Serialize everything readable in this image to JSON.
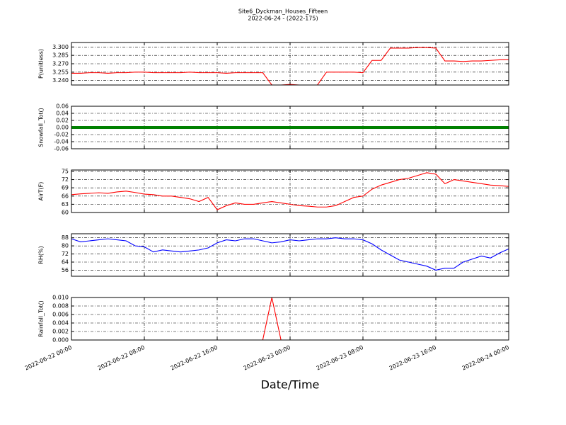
{
  "chart_data": [
    {
      "type": "line",
      "title": "Site6_Dyckman_Houses_Fifteen",
      "subtitle": "2022-06-24 - (2022-175)",
      "ylabel": "P(unitless)",
      "x": [
        "2022-06-22 00:00",
        "2022-06-22 01:00",
        "2022-06-22 02:00",
        "2022-06-22 03:00",
        "2022-06-22 04:00",
        "2022-06-22 05:00",
        "2022-06-22 06:00",
        "2022-06-22 07:00",
        "2022-06-22 08:00",
        "2022-06-22 09:00",
        "2022-06-22 10:00",
        "2022-06-22 11:00",
        "2022-06-22 12:00",
        "2022-06-22 13:00",
        "2022-06-22 14:00",
        "2022-06-22 15:00",
        "2022-06-22 16:00",
        "2022-06-22 17:00",
        "2022-06-22 18:00",
        "2022-06-22 19:00",
        "2022-06-22 20:00",
        "2022-06-22 21:00",
        "2022-06-22 22:00",
        "2022-06-22 23:00",
        "2022-06-23 00:00",
        "2022-06-23 01:00",
        "2022-06-23 02:00",
        "2022-06-23 03:00",
        "2022-06-23 04:00",
        "2022-06-23 05:00",
        "2022-06-23 06:00",
        "2022-06-23 07:00",
        "2022-06-23 08:00",
        "2022-06-23 09:00",
        "2022-06-23 10:00",
        "2022-06-23 11:00",
        "2022-06-23 12:00",
        "2022-06-23 13:00",
        "2022-06-23 14:00",
        "2022-06-23 15:00",
        "2022-06-23 16:00",
        "2022-06-23 17:00",
        "2022-06-23 18:00",
        "2022-06-23 19:00",
        "2022-06-23 20:00",
        "2022-06-23 21:00",
        "2022-06-23 22:00",
        "2022-06-23 23:00",
        "2022-06-24 00:00"
      ],
      "series": [
        {
          "name": "P",
          "color": "#ff0000",
          "values": [
            3.253,
            3.253,
            3.254,
            3.254,
            3.253,
            3.254,
            3.254,
            3.255,
            3.255,
            3.254,
            3.254,
            3.254,
            3.254,
            3.255,
            3.254,
            3.254,
            3.254,
            3.253,
            3.254,
            3.254,
            3.254,
            3.254,
            3.232,
            3.232,
            3.233,
            3.232,
            3.232,
            3.232,
            3.255,
            3.255,
            3.255,
            3.255,
            3.254,
            3.276,
            3.276,
            3.298,
            3.298,
            3.298,
            3.299,
            3.299,
            3.298,
            3.275,
            3.275,
            3.274,
            3.275,
            3.275,
            3.276,
            3.277,
            3.277
          ]
        }
      ],
      "xlim": [
        "2022-06-22 00:00",
        "2022-06-24 00:00"
      ],
      "xticks": [
        "2022-06-22 00:00",
        "2022-06-22 08:00",
        "2022-06-22 16:00",
        "2022-06-23 00:00",
        "2022-06-23 08:00",
        "2022-06-23 16:00",
        "2022-06-24 00:00"
      ],
      "ylim": [
        3.232,
        3.308
      ],
      "yticks": [
        {
          "value": 3.24,
          "label": "3.240"
        },
        {
          "value": 3.255,
          "label": "3.255"
        },
        {
          "value": 3.27,
          "label": "3.270"
        },
        3.285,
        {
          "value": 3.3,
          "label": "3.300"
        }
      ],
      "grid": true
    },
    {
      "type": "line",
      "ylabel": "Snowfall_Tot()",
      "x": [
        "2022-06-22 00:00",
        "2022-06-22 01:00",
        "2022-06-22 02:00",
        "2022-06-22 03:00",
        "2022-06-22 04:00",
        "2022-06-22 05:00",
        "2022-06-22 06:00",
        "2022-06-22 07:00",
        "2022-06-22 08:00",
        "2022-06-22 09:00",
        "2022-06-22 10:00",
        "2022-06-22 11:00",
        "2022-06-22 12:00",
        "2022-06-22 13:00",
        "2022-06-22 14:00",
        "2022-06-22 15:00",
        "2022-06-22 16:00",
        "2022-06-22 17:00",
        "2022-06-22 18:00",
        "2022-06-22 19:00",
        "2022-06-22 20:00",
        "2022-06-22 21:00",
        "2022-06-22 22:00",
        "2022-06-22 23:00",
        "2022-06-23 00:00",
        "2022-06-23 01:00",
        "2022-06-23 02:00",
        "2022-06-23 03:00",
        "2022-06-23 04:00",
        "2022-06-23 05:00",
        "2022-06-23 06:00",
        "2022-06-23 07:00",
        "2022-06-23 08:00",
        "2022-06-23 09:00",
        "2022-06-23 10:00",
        "2022-06-23 11:00",
        "2022-06-23 12:00",
        "2022-06-23 13:00",
        "2022-06-23 14:00",
        "2022-06-23 15:00",
        "2022-06-23 16:00",
        "2022-06-23 17:00",
        "2022-06-23 18:00",
        "2022-06-23 19:00",
        "2022-06-23 20:00",
        "2022-06-23 21:00",
        "2022-06-23 22:00",
        "2022-06-23 23:00",
        "2022-06-24 00:00"
      ],
      "series": [
        {
          "name": "Snowfall_Tot",
          "color": "#008000",
          "values": [
            0,
            0,
            0,
            0,
            0,
            0,
            0,
            0,
            0,
            0,
            0,
            0,
            0,
            0,
            0,
            0,
            0,
            0,
            0,
            0,
            0,
            0,
            0,
            0,
            0,
            0,
            0,
            0,
            0,
            0,
            0,
            0,
            0,
            0,
            0,
            0,
            0,
            0,
            0,
            0,
            0,
            0,
            0,
            0,
            0,
            0,
            0,
            0,
            0
          ]
        }
      ],
      "xlim": [
        "2022-06-22 00:00",
        "2022-06-24 00:00"
      ],
      "xticks": [
        "2022-06-22 00:00",
        "2022-06-22 08:00",
        "2022-06-22 16:00",
        "2022-06-23 00:00",
        "2022-06-23 08:00",
        "2022-06-23 16:00",
        "2022-06-24 00:00"
      ],
      "ylim": [
        -0.06,
        0.06
      ],
      "yticks": [
        -0.06,
        -0.04,
        -0.02,
        {
          "value": 0,
          "label": "0.00"
        },
        0.02,
        0.04,
        0.06
      ],
      "grid": true
    },
    {
      "type": "line",
      "ylabel": "AirT(F)",
      "x": [
        "2022-06-22 00:00",
        "2022-06-22 01:00",
        "2022-06-22 02:00",
        "2022-06-22 03:00",
        "2022-06-22 04:00",
        "2022-06-22 05:00",
        "2022-06-22 06:00",
        "2022-06-22 07:00",
        "2022-06-22 08:00",
        "2022-06-22 09:00",
        "2022-06-22 10:00",
        "2022-06-22 11:00",
        "2022-06-22 12:00",
        "2022-06-22 13:00",
        "2022-06-22 14:00",
        "2022-06-22 15:00",
        "2022-06-22 16:00",
        "2022-06-22 17:00",
        "2022-06-22 18:00",
        "2022-06-22 19:00",
        "2022-06-22 20:00",
        "2022-06-22 21:00",
        "2022-06-22 22:00",
        "2022-06-22 23:00",
        "2022-06-23 00:00",
        "2022-06-23 01:00",
        "2022-06-23 02:00",
        "2022-06-23 03:00",
        "2022-06-23 04:00",
        "2022-06-23 05:00",
        "2022-06-23 06:00",
        "2022-06-23 07:00",
        "2022-06-23 08:00",
        "2022-06-23 09:00",
        "2022-06-23 10:00",
        "2022-06-23 11:00",
        "2022-06-23 12:00",
        "2022-06-23 13:00",
        "2022-06-23 14:00",
        "2022-06-23 15:00",
        "2022-06-23 16:00",
        "2022-06-23 17:00",
        "2022-06-23 18:00",
        "2022-06-23 19:00",
        "2022-06-23 20:00",
        "2022-06-23 21:00",
        "2022-06-23 22:00",
        "2022-06-23 23:00",
        "2022-06-24 00:00"
      ],
      "series": [
        {
          "name": "AirT",
          "color": "#ff0000",
          "values": [
            66.5,
            66.8,
            67,
            67.2,
            67,
            67.5,
            67.8,
            67.3,
            66.7,
            66.5,
            66,
            66,
            65.5,
            65,
            64,
            65.5,
            61,
            62.5,
            63.5,
            63,
            63,
            63.5,
            64,
            63.5,
            63,
            62.5,
            62.3,
            62,
            62,
            62.5,
            64,
            65.5,
            66,
            68.5,
            70,
            71,
            72,
            72.5,
            73.5,
            74.5,
            74,
            70.5,
            72,
            71.5,
            71,
            70.5,
            70,
            69.8,
            69.5
          ]
        }
      ],
      "xlim": [
        "2022-06-22 00:00",
        "2022-06-24 00:00"
      ],
      "xticks": [
        "2022-06-22 00:00",
        "2022-06-22 08:00",
        "2022-06-22 16:00",
        "2022-06-23 00:00",
        "2022-06-23 08:00",
        "2022-06-23 16:00",
        "2022-06-24 00:00"
      ],
      "ylim": [
        60,
        75.5
      ],
      "yticks": [
        60,
        63,
        66,
        69,
        72,
        75
      ],
      "grid": true
    },
    {
      "type": "line",
      "ylabel": "RH(%)",
      "x": [
        "2022-06-22 00:00",
        "2022-06-22 01:00",
        "2022-06-22 02:00",
        "2022-06-22 03:00",
        "2022-06-22 04:00",
        "2022-06-22 05:00",
        "2022-06-22 06:00",
        "2022-06-22 07:00",
        "2022-06-22 08:00",
        "2022-06-22 09:00",
        "2022-06-22 10:00",
        "2022-06-22 11:00",
        "2022-06-22 12:00",
        "2022-06-22 13:00",
        "2022-06-22 14:00",
        "2022-06-22 15:00",
        "2022-06-22 16:00",
        "2022-06-22 17:00",
        "2022-06-22 18:00",
        "2022-06-22 19:00",
        "2022-06-22 20:00",
        "2022-06-22 21:00",
        "2022-06-22 22:00",
        "2022-06-22 23:00",
        "2022-06-23 00:00",
        "2022-06-23 01:00",
        "2022-06-23 02:00",
        "2022-06-23 03:00",
        "2022-06-23 04:00",
        "2022-06-23 05:00",
        "2022-06-23 06:00",
        "2022-06-23 07:00",
        "2022-06-23 08:00",
        "2022-06-23 09:00",
        "2022-06-23 10:00",
        "2022-06-23 11:00",
        "2022-06-23 12:00",
        "2022-06-23 13:00",
        "2022-06-23 14:00",
        "2022-06-23 15:00",
        "2022-06-23 16:00",
        "2022-06-23 17:00",
        "2022-06-23 18:00",
        "2022-06-23 19:00",
        "2022-06-23 20:00",
        "2022-06-23 21:00",
        "2022-06-23 22:00",
        "2022-06-23 23:00",
        "2022-06-24 00:00"
      ],
      "series": [
        {
          "name": "RH",
          "color": "#0000ff",
          "values": [
            87,
            84,
            85,
            86,
            87,
            86,
            85,
            80,
            79,
            74,
            76,
            75,
            74,
            75,
            76,
            78,
            83,
            86,
            85,
            87,
            87,
            85,
            83,
            84,
            86,
            85,
            86,
            87,
            87,
            88,
            87,
            87,
            86,
            82,
            76,
            71,
            66,
            64,
            62,
            60,
            56,
            58,
            58,
            64,
            67,
            70,
            68,
            73,
            77
          ]
        }
      ],
      "xlim": [
        "2022-06-22 00:00",
        "2022-06-24 00:00"
      ],
      "xticks": [
        "2022-06-22 00:00",
        "2022-06-22 08:00",
        "2022-06-22 16:00",
        "2022-06-23 00:00",
        "2022-06-23 08:00",
        "2022-06-23 16:00",
        "2022-06-24 00:00"
      ],
      "ylim": [
        50,
        92
      ],
      "yticks": [
        56,
        64,
        72,
        80,
        88
      ],
      "grid": true
    },
    {
      "type": "line",
      "ylabel": "Rainfall_Tot()",
      "xlabel": "Date/Time",
      "x": [
        "2022-06-22 00:00",
        "2022-06-22 01:00",
        "2022-06-22 02:00",
        "2022-06-22 03:00",
        "2022-06-22 04:00",
        "2022-06-22 05:00",
        "2022-06-22 06:00",
        "2022-06-22 07:00",
        "2022-06-22 08:00",
        "2022-06-22 09:00",
        "2022-06-22 10:00",
        "2022-06-22 11:00",
        "2022-06-22 12:00",
        "2022-06-22 13:00",
        "2022-06-22 14:00",
        "2022-06-22 15:00",
        "2022-06-22 16:00",
        "2022-06-22 17:00",
        "2022-06-22 18:00",
        "2022-06-22 19:00",
        "2022-06-22 20:00",
        "2022-06-22 21:00",
        "2022-06-22 22:00",
        "2022-06-22 23:00",
        "2022-06-23 00:00",
        "2022-06-23 01:00",
        "2022-06-23 02:00",
        "2022-06-23 03:00",
        "2022-06-23 04:00",
        "2022-06-23 05:00",
        "2022-06-23 06:00",
        "2022-06-23 07:00",
        "2022-06-23 08:00",
        "2022-06-23 09:00",
        "2022-06-23 10:00",
        "2022-06-23 11:00",
        "2022-06-23 12:00",
        "2022-06-23 13:00",
        "2022-06-23 14:00",
        "2022-06-23 15:00",
        "2022-06-23 16:00",
        "2022-06-23 17:00",
        "2022-06-23 18:00",
        "2022-06-23 19:00",
        "2022-06-23 20:00",
        "2022-06-23 21:00",
        "2022-06-23 22:00",
        "2022-06-23 23:00",
        "2022-06-24 00:00"
      ],
      "series": [
        {
          "name": "Rainfall_Tot",
          "color": "#ff0000",
          "values": [
            0,
            0,
            0,
            0,
            0,
            0,
            0,
            0,
            0,
            0,
            0,
            0,
            0,
            0,
            0,
            0,
            0,
            0,
            0,
            0,
            0,
            0,
            0.01,
            0,
            0,
            0,
            0,
            0,
            0,
            0,
            0,
            0,
            0,
            0,
            0,
            0,
            0,
            0,
            0,
            0,
            0,
            0,
            0,
            0,
            0,
            0,
            0,
            0,
            0
          ]
        }
      ],
      "xlim": [
        "2022-06-22 00:00",
        "2022-06-24 00:00"
      ],
      "xticks": [
        "2022-06-22 00:00",
        "2022-06-22 08:00",
        "2022-06-22 16:00",
        "2022-06-23 00:00",
        "2022-06-23 08:00",
        "2022-06-23 16:00",
        "2022-06-24 00:00"
      ],
      "ylim": [
        0,
        0.01
      ],
      "yticks": [
        {
          "value": 0,
          "label": "0.000"
        },
        {
          "value": 0.002,
          "label": "0.002"
        },
        {
          "value": 0.004,
          "label": "0.004"
        },
        {
          "value": 0.006,
          "label": "0.006"
        },
        {
          "value": 0.008,
          "label": "0.008"
        },
        {
          "value": 0.01,
          "label": "0.010"
        }
      ],
      "grid": true
    }
  ]
}
